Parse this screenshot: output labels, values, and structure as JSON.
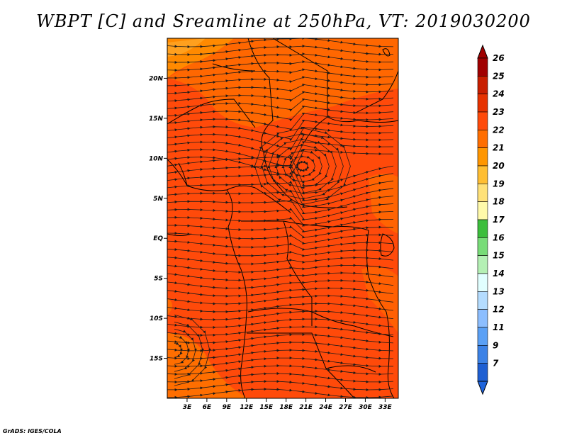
{
  "title": "WBPT [C] and Sreamline at 250hPa, VT: 2019030200",
  "credit": "GrADS: IGES/COLA",
  "map": {
    "lon_range": [
      0,
      35
    ],
    "lat_range": [
      -20,
      25
    ],
    "lon_ticks": [
      {
        "value": 3,
        "label": "3E"
      },
      {
        "value": 6,
        "label": "6E"
      },
      {
        "value": 9,
        "label": "9E"
      },
      {
        "value": 12,
        "label": "12E"
      },
      {
        "value": 15,
        "label": "15E"
      },
      {
        "value": 18,
        "label": "18E"
      },
      {
        "value": 21,
        "label": "21E"
      },
      {
        "value": 24,
        "label": "24E"
      },
      {
        "value": 27,
        "label": "27E"
      },
      {
        "value": 30,
        "label": "30E"
      },
      {
        "value": 33,
        "label": "33E"
      }
    ],
    "lat_ticks": [
      {
        "value": 20,
        "label": "20N"
      },
      {
        "value": 15,
        "label": "15N"
      },
      {
        "value": 10,
        "label": "10N"
      },
      {
        "value": 5,
        "label": "5N"
      },
      {
        "value": 0,
        "label": "EQ"
      },
      {
        "value": -5,
        "label": "5S"
      },
      {
        "value": -10,
        "label": "10S"
      },
      {
        "value": -15,
        "label": "15S"
      }
    ],
    "fill_color": "#ff4a0a",
    "stream_color": "#1a1a1a",
    "cyclone_center": {
      "lon": 20.5,
      "lat": 9
    }
  },
  "colorbar": {
    "levels": [
      {
        "label": "26",
        "color": "#a00000"
      },
      {
        "label": "25",
        "color": "#c81e00"
      },
      {
        "label": "24",
        "color": "#e63200"
      },
      {
        "label": "23",
        "color": "#ff4a0a"
      },
      {
        "label": "22",
        "color": "#ff6e00"
      },
      {
        "label": "21",
        "color": "#ff9600"
      },
      {
        "label": "20",
        "color": "#ffbe32"
      },
      {
        "label": "19",
        "color": "#ffe178"
      },
      {
        "label": "18",
        "color": "#fffaaa"
      },
      {
        "label": "17",
        "color": "#3cbe3c"
      },
      {
        "label": "16",
        "color": "#78dc78"
      },
      {
        "label": "15",
        "color": "#b4f0b4"
      },
      {
        "label": "14",
        "color": "#e1ffff"
      },
      {
        "label": "13",
        "color": "#b4dcff"
      },
      {
        "label": "12",
        "color": "#8cbeff"
      },
      {
        "label": "11",
        "color": "#5aa0f5"
      },
      {
        "label": "9",
        "color": "#3c82e6"
      },
      {
        "label": "7",
        "color": "#1e5fd2"
      }
    ],
    "below_color": "#1e64dc"
  }
}
